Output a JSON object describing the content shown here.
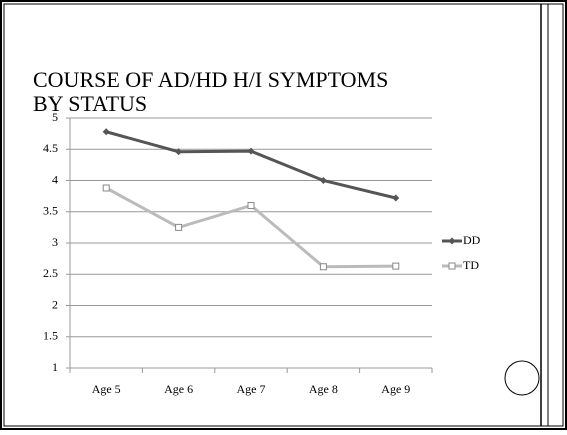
{
  "chart_data": {
    "type": "line",
    "title": [
      "COURSE OF AD/HD H/I SYMPTOMS",
      "BY STATUS"
    ],
    "categories": [
      "Age 5",
      "Age 6",
      "Age 7",
      "Age 8",
      "Age 9"
    ],
    "series": [
      {
        "name": "DD",
        "color": "#555555",
        "marker": "diamond",
        "values": [
          4.78,
          4.46,
          4.47,
          4.0,
          3.72
        ]
      },
      {
        "name": "TD",
        "color": "#bbbbbb",
        "marker": "square",
        "values": [
          3.88,
          3.25,
          3.6,
          2.62,
          2.63
        ]
      }
    ],
    "ylim": [
      1,
      5
    ],
    "yticks": [
      1,
      1.5,
      2,
      2.5,
      3,
      3.5,
      4,
      4.5,
      5
    ],
    "grid": true,
    "legend": "right"
  }
}
